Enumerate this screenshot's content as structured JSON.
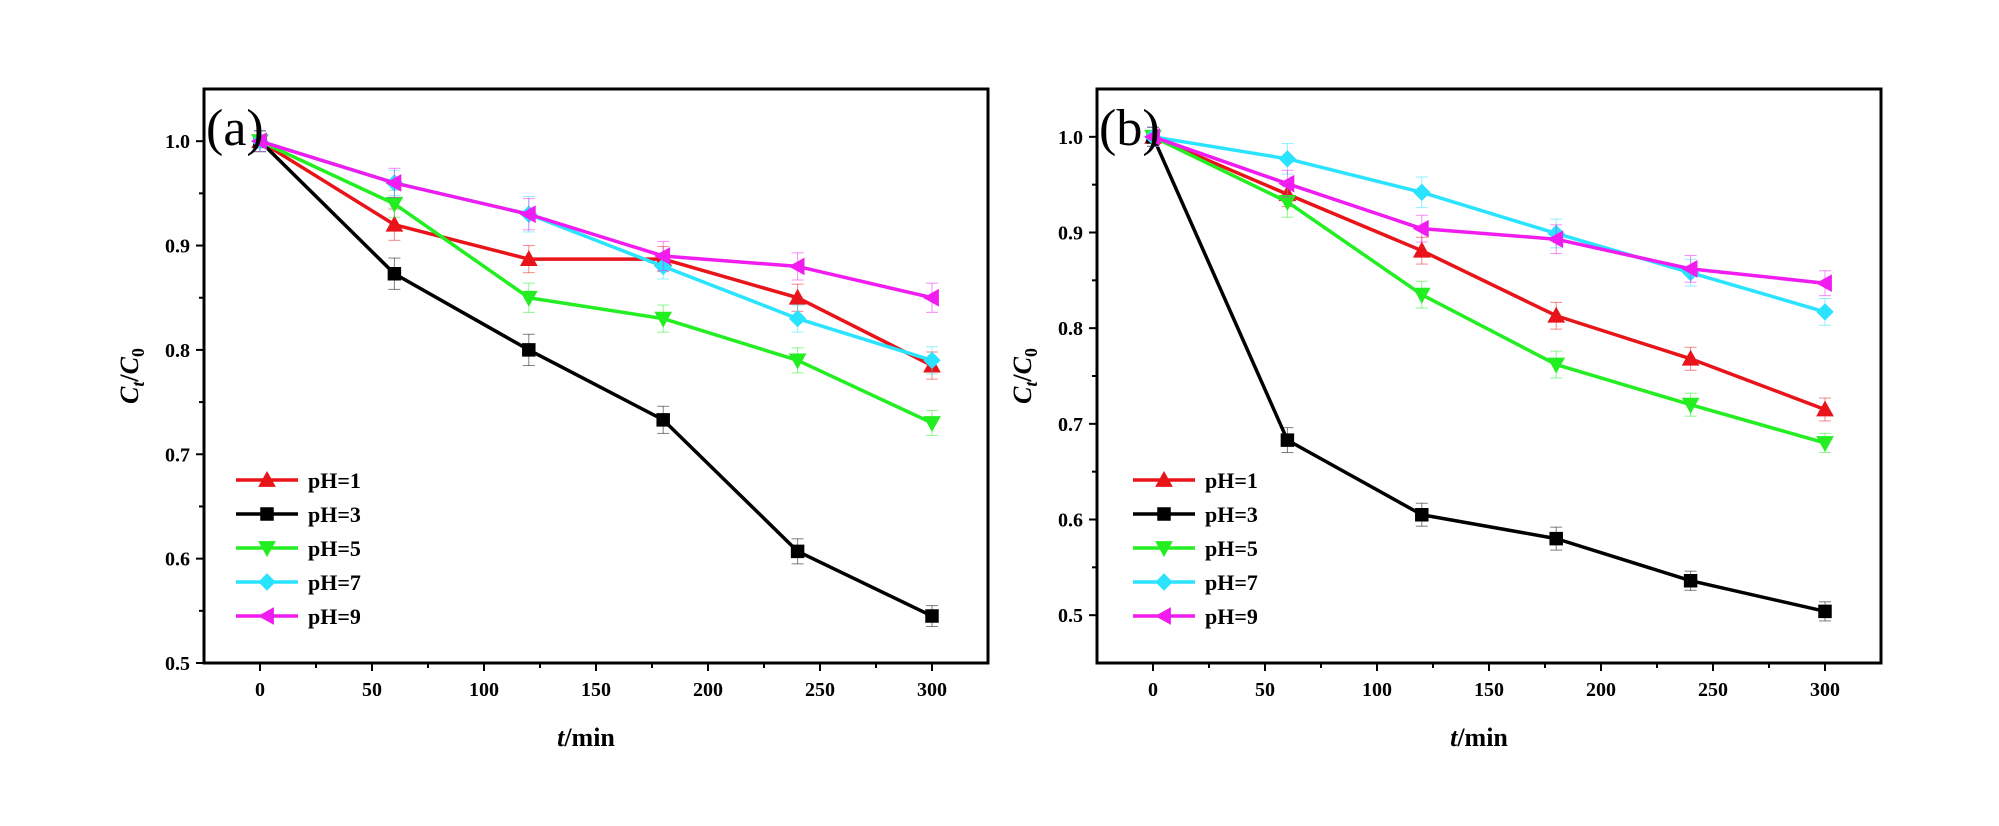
{
  "chart_data": [
    {
      "type": "line",
      "panel_label": "(a)",
      "xlabel_italic": "t",
      "xlabel_unit": "/min",
      "ylabel_c": "C",
      "ylabel_t": "t",
      "ylabel_slash": "/",
      "ylabel_0": "0",
      "xlim": [
        -25,
        325
      ],
      "ylim": [
        0.5,
        1.05
      ],
      "xticks": [
        0,
        50,
        100,
        150,
        200,
        250,
        300
      ],
      "xtick_labels": [
        "0",
        "50",
        "100",
        "150",
        "200",
        "250",
        "300"
      ],
      "yticks": [
        0.5,
        0.6,
        0.7,
        0.8,
        0.9,
        1.0
      ],
      "ytick_labels": [
        "0.5",
        "0.6",
        "0.7",
        "0.8",
        "0.9",
        "1.0"
      ],
      "legend_position": "bottom-left",
      "x": [
        0,
        60,
        120,
        180,
        240,
        300
      ],
      "series": [
        {
          "name": "pH=1",
          "color": "#e8141a",
          "marker": "triangle-up",
          "values": [
            1.0,
            0.92,
            0.887,
            0.887,
            0.85,
            0.785
          ],
          "errors": [
            0.01,
            0.015,
            0.013,
            0.012,
            0.013,
            0.013
          ]
        },
        {
          "name": "pH=3",
          "color": "#000000",
          "marker": "square",
          "values": [
            1.0,
            0.873,
            0.8,
            0.733,
            0.607,
            0.545
          ],
          "errors": [
            0.01,
            0.015,
            0.015,
            0.013,
            0.012,
            0.01
          ]
        },
        {
          "name": "pH=5",
          "color": "#22ee22",
          "marker": "triangle-down",
          "values": [
            1.0,
            0.94,
            0.85,
            0.83,
            0.79,
            0.73
          ],
          "errors": [
            0.01,
            0.013,
            0.014,
            0.013,
            0.012,
            0.012
          ]
        },
        {
          "name": "pH=7",
          "color": "#2ae3ff",
          "marker": "diamond",
          "values": [
            1.0,
            0.96,
            0.93,
            0.88,
            0.83,
            0.79
          ],
          "errors": [
            0.01,
            0.012,
            0.017,
            0.012,
            0.013,
            0.013
          ]
        },
        {
          "name": "pH=9",
          "color": "#f01cf0",
          "marker": "triangle-left",
          "values": [
            1.0,
            0.96,
            0.93,
            0.89,
            0.88,
            0.85
          ],
          "errors": [
            0.01,
            0.014,
            0.015,
            0.014,
            0.013,
            0.014
          ]
        }
      ]
    },
    {
      "type": "line",
      "panel_label": "(b)",
      "xlabel_italic": "t",
      "xlabel_unit": "/min",
      "ylabel_c": "C",
      "ylabel_t": "t",
      "ylabel_slash": "/",
      "ylabel_0": "0",
      "xlim": [
        -25,
        325
      ],
      "ylim": [
        0.45,
        1.05
      ],
      "xticks": [
        0,
        50,
        100,
        150,
        200,
        250,
        300
      ],
      "xtick_labels": [
        "0",
        "50",
        "100",
        "150",
        "200",
        "250",
        "300"
      ],
      "yticks": [
        0.5,
        0.6,
        0.7,
        0.8,
        0.9,
        1.0
      ],
      "ytick_labels": [
        "0.5",
        "0.6",
        "0.7",
        "0.8",
        "0.9",
        "1.0"
      ],
      "legend_position": "bottom-left",
      "x": [
        0,
        60,
        120,
        180,
        240,
        300
      ],
      "series": [
        {
          "name": "pH=1",
          "color": "#e8141a",
          "marker": "triangle-up",
          "values": [
            1.0,
            0.94,
            0.881,
            0.813,
            0.768,
            0.715
          ],
          "errors": [
            0.01,
            0.013,
            0.014,
            0.014,
            0.012,
            0.012
          ]
        },
        {
          "name": "pH=3",
          "color": "#000000",
          "marker": "square",
          "values": [
            1.0,
            0.683,
            0.605,
            0.58,
            0.536,
            0.504
          ],
          "errors": [
            0.01,
            0.013,
            0.012,
            0.012,
            0.01,
            0.01
          ]
        },
        {
          "name": "pH=5",
          "color": "#22ee22",
          "marker": "triangle-down",
          "values": [
            1.0,
            0.932,
            0.835,
            0.762,
            0.72,
            0.68
          ],
          "errors": [
            0.01,
            0.016,
            0.014,
            0.014,
            0.012,
            0.01
          ]
        },
        {
          "name": "pH=7",
          "color": "#2ae3ff",
          "marker": "diamond",
          "values": [
            1.0,
            0.977,
            0.942,
            0.899,
            0.858,
            0.817
          ],
          "errors": [
            0.01,
            0.016,
            0.016,
            0.015,
            0.014,
            0.014
          ]
        },
        {
          "name": "pH=9",
          "color": "#f01cf0",
          "marker": "triangle-left",
          "values": [
            1.0,
            0.951,
            0.904,
            0.893,
            0.862,
            0.847
          ],
          "errors": [
            0.01,
            0.014,
            0.014,
            0.015,
            0.014,
            0.013
          ]
        }
      ]
    }
  ]
}
